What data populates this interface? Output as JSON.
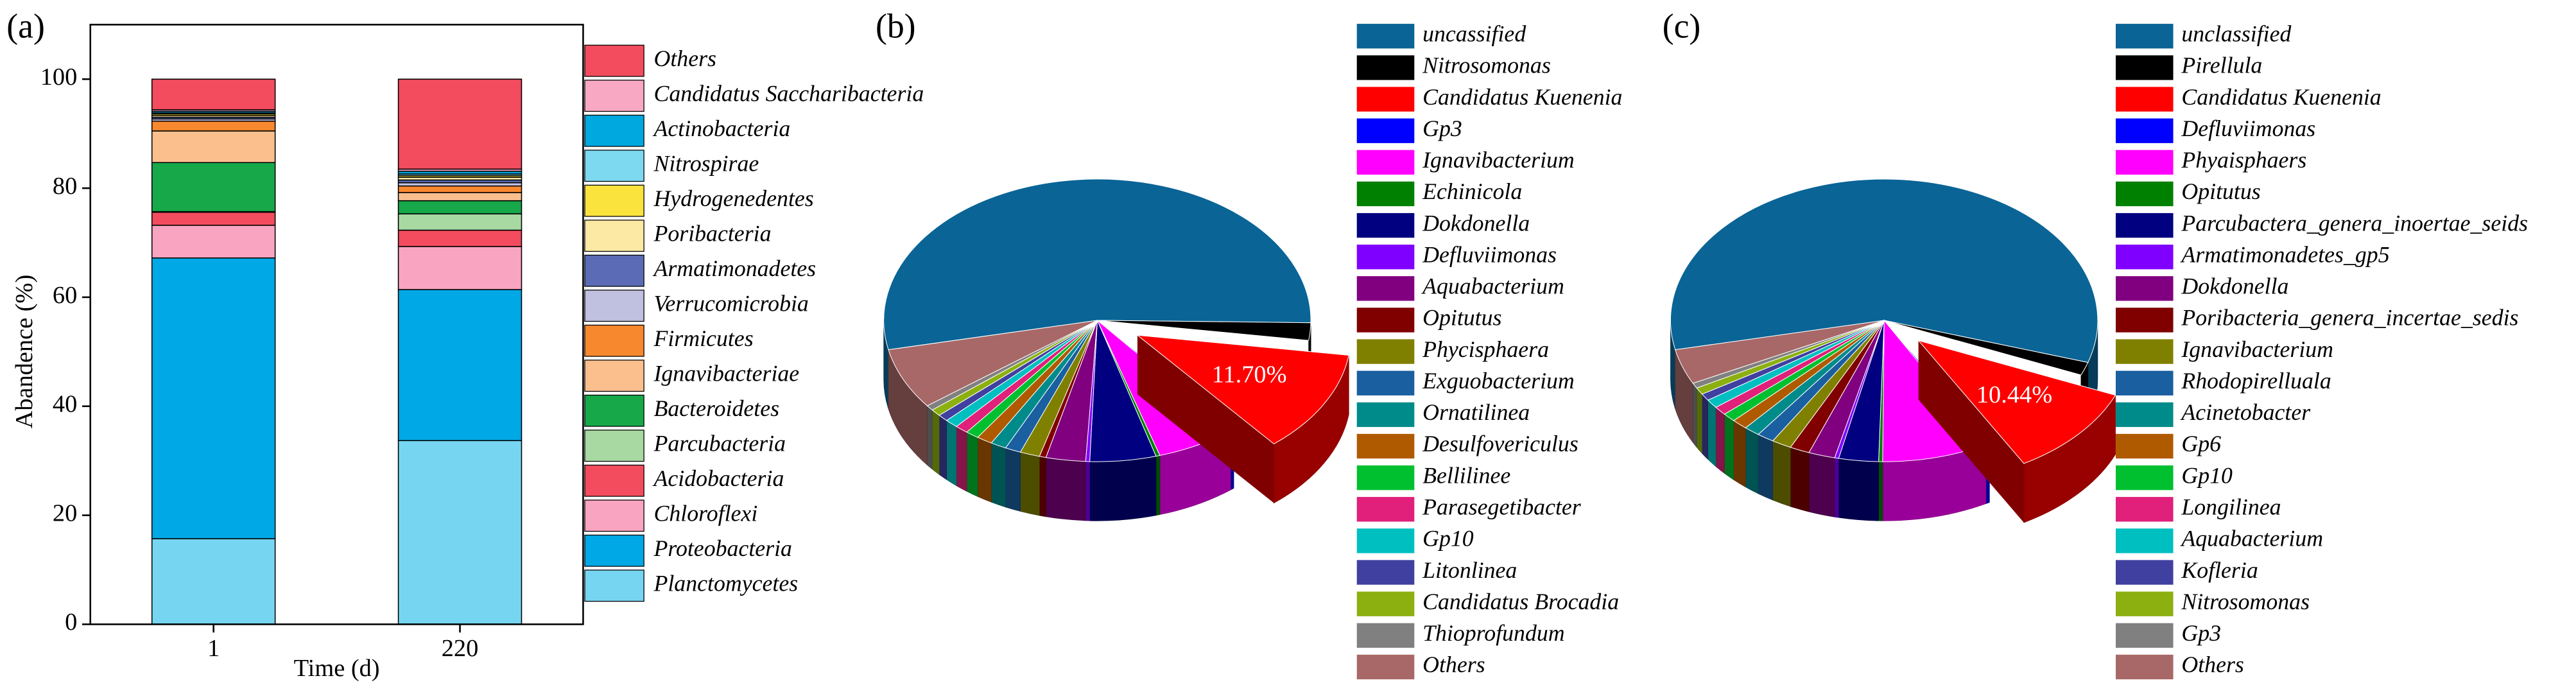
{
  "chart_data": [
    {
      "type": "bar",
      "stacked": true,
      "panel": "(a)",
      "xlabel": "Time (d)",
      "ylabel": "Abandence (%)",
      "categories": [
        "1",
        "220"
      ],
      "ylim": [
        0,
        110
      ],
      "yticks": [
        0,
        20,
        40,
        60,
        80,
        100
      ],
      "series": [
        {
          "name": "Planctomycetes",
          "color": "#76d6f2",
          "values": [
            15.7,
            33.7
          ]
        },
        {
          "name": "Proteobacteria",
          "color": "#00a8e6",
          "values": [
            51.5,
            27.7
          ]
        },
        {
          "name": "Chloroflexi",
          "color": "#f9a4c0",
          "values": [
            6.0,
            7.9
          ]
        },
        {
          "name": "Acidobacteria",
          "color": "#f24c5e",
          "values": [
            2.4,
            3.0
          ]
        },
        {
          "name": "Parcubacteria",
          "color": "#a8d9a2",
          "values": [
            0.1,
            3.0
          ]
        },
        {
          "name": "Bacteroidetes",
          "color": "#17a84a",
          "values": [
            9.0,
            2.4
          ]
        },
        {
          "name": "Ignavibacteriae",
          "color": "#fbbf8e",
          "values": [
            5.8,
            1.5
          ]
        },
        {
          "name": "Firmicutes",
          "color": "#f8882e",
          "values": [
            1.8,
            1.2
          ]
        },
        {
          "name": "Verrucomicrobia",
          "color": "#c0c0e0",
          "values": [
            0.4,
            0.6
          ]
        },
        {
          "name": "Armatimonadetes",
          "color": "#5b6bb5",
          "values": [
            0.3,
            0.5
          ]
        },
        {
          "name": "Poribacteria",
          "color": "#fbe9a4",
          "values": [
            0.3,
            0.5
          ]
        },
        {
          "name": "Hydrogenedentes",
          "color": "#fbe33e",
          "values": [
            0.3,
            0.3
          ]
        },
        {
          "name": "Nitrospirae",
          "color": "#7dd9ef",
          "values": [
            0.2,
            0.3
          ]
        },
        {
          "name": "Actinobacteria",
          "color": "#00a8e0",
          "values": [
            0.3,
            0.5
          ]
        },
        {
          "name": "Candidatus Saccharibacteria",
          "color": "#f9a8c4",
          "values": [
            0.3,
            0.4
          ]
        },
        {
          "name": "Others",
          "color": "#f24c5e",
          "values": [
            5.6,
            16.5
          ]
        }
      ]
    },
    {
      "type": "pie",
      "panel": "(b)",
      "exploded": 2,
      "categories": [
        "uncassified",
        "Nitrosomonas",
        "Candidatus Kuenenia",
        "Gp3",
        "Ignavibacterium",
        "Echinicola",
        "Dokdonella",
        "Defluviimonas",
        "Aquabacterium",
        "Opitutus",
        "Phycisphaera",
        "Exguobacterium",
        "Ornatilinea",
        "Desulfovericulus",
        "Bellilinee",
        "Parasegetibacter",
        "Gp10",
        "Litonlinea",
        "Candidatus Brocadia",
        "Thioprofundum",
        "Others"
      ],
      "values": [
        53.6,
        2.0,
        11.7,
        0.3,
        6.0,
        0.3,
        5.0,
        0.3,
        3.0,
        0.5,
        1.5,
        1.2,
        1.2,
        1.2,
        1.0,
        1.0,
        1.0,
        0.8,
        0.8,
        0.6,
        7.0
      ],
      "value_labels": [
        null,
        null,
        "11.70%",
        null,
        null,
        null,
        null,
        null,
        null,
        null,
        null,
        null,
        null,
        null,
        null,
        null,
        null,
        null,
        null,
        null,
        null
      ],
      "colors": [
        "#0a6496",
        "#000000",
        "#ff0000",
        "#0000ff",
        "#ff00ff",
        "#008000",
        "#000080",
        "#8000ff",
        "#800080",
        "#800000",
        "#808000",
        "#1a5fa0",
        "#008b8b",
        "#b05a00",
        "#00c030",
        "#e0207a",
        "#00bfc0",
        "#4040a0",
        "#8cb010",
        "#808080",
        "#a86868"
      ]
    },
    {
      "type": "pie",
      "panel": "(c)",
      "exploded": 2,
      "categories": [
        "unclassified",
        "Pirellula",
        "Candidatus Kuenenia",
        "Defluviimonas",
        "Phyaisphaers",
        "Opitutus",
        "Parcubactera_genera_inoertae_seids",
        "Armatimonadetes_gp5",
        "Dokdonella",
        "Poribacteria_genera_incertae_sedis",
        "Ignavibacterium",
        "Rhodopirelluala",
        "Acinetobacter",
        "Gp6",
        "Gp10",
        "Longilinea",
        "Aquabacterium",
        "Kofleria",
        "Nitrosomonas",
        "Gp3",
        "Others"
      ],
      "values": [
        58.0,
        1.5,
        10.44,
        0.3,
        8.0,
        0.3,
        3.0,
        0.3,
        2.0,
        1.5,
        1.5,
        1.3,
        1.2,
        1.2,
        1.0,
        1.0,
        1.0,
        0.8,
        0.8,
        0.6,
        4.0
      ],
      "value_labels": [
        null,
        null,
        "10.44%",
        null,
        null,
        null,
        null,
        null,
        null,
        null,
        null,
        null,
        null,
        null,
        null,
        null,
        null,
        null,
        null,
        null,
        null
      ],
      "colors": [
        "#0a6496",
        "#000000",
        "#ff0000",
        "#0000ff",
        "#ff00ff",
        "#008000",
        "#000080",
        "#8000ff",
        "#800080",
        "#800000",
        "#808000",
        "#1a5fa0",
        "#008b8b",
        "#b05a00",
        "#00c030",
        "#e0207a",
        "#00bfc0",
        "#4040a0",
        "#8cb010",
        "#808080",
        "#a86868"
      ]
    }
  ]
}
